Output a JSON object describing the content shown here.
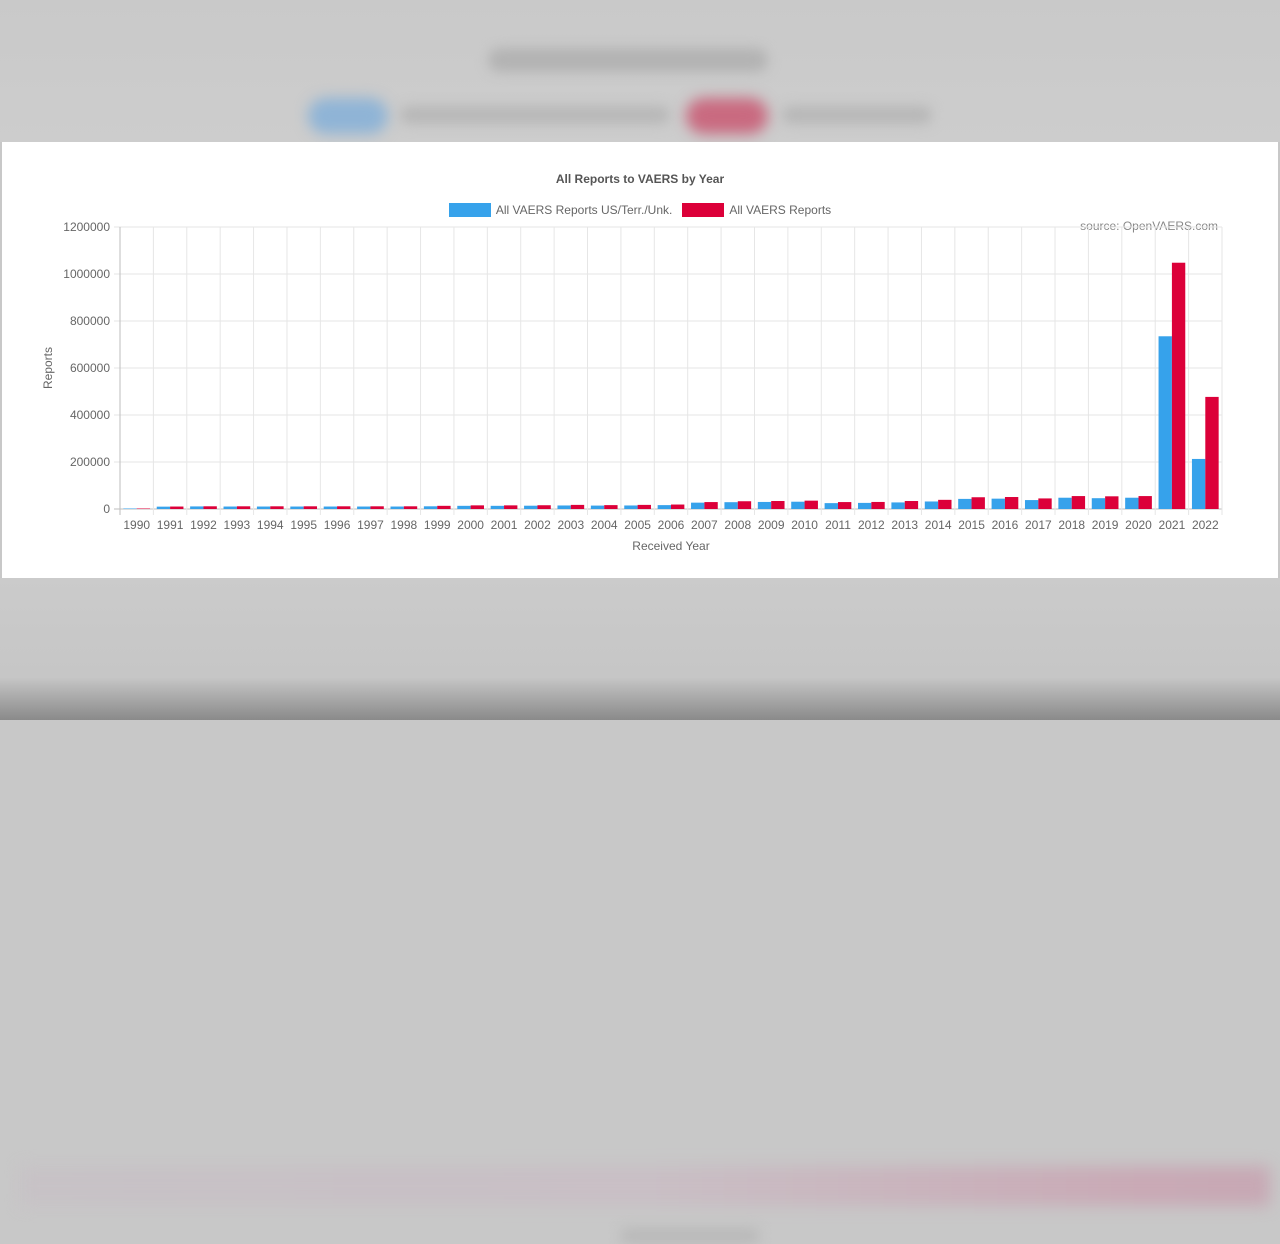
{
  "chart_data": {
    "type": "bar",
    "title": "All Reports to VAERS by Year",
    "xlabel": "Received Year",
    "ylabel": "Reports",
    "ylim": [
      0,
      1200000
    ],
    "yticks": [
      "0",
      "200000",
      "400000",
      "600000",
      "800000",
      "1000000",
      "1200000"
    ],
    "grid": true,
    "legend_position": "top",
    "source_note": "source: OpenVAERS.com",
    "categories": [
      "1990",
      "1991",
      "1992",
      "1993",
      "1994",
      "1995",
      "1996",
      "1997",
      "1998",
      "1999",
      "2000",
      "2001",
      "2002",
      "2003",
      "2004",
      "2005",
      "2006",
      "2007",
      "2008",
      "2009",
      "2010",
      "2011",
      "2012",
      "2013",
      "2014",
      "2015",
      "2016",
      "2017",
      "2018",
      "2019",
      "2020",
      "2021",
      "2022"
    ],
    "series": [
      {
        "name": "All VAERS Reports US/Terr./Unk.",
        "color": "#36a2eb",
        "values": [
          2100,
          10000,
          11000,
          10500,
          10500,
          10500,
          10500,
          10500,
          10500,
          11500,
          13500,
          13500,
          14000,
          15000,
          14500,
          15000,
          16500,
          27000,
          29000,
          30000,
          31000,
          25000,
          26000,
          28000,
          32000,
          43000,
          44000,
          38000,
          48000,
          46000,
          48000,
          735000,
          213000
        ]
      },
      {
        "name": "All VAERS Reports",
        "color": "#dc0039",
        "values": [
          2100,
          10500,
          11500,
          11500,
          11500,
          11500,
          11500,
          11500,
          11500,
          13500,
          15500,
          15500,
          16000,
          17500,
          16500,
          17500,
          19000,
          29500,
          33000,
          34000,
          35500,
          29500,
          30000,
          34000,
          39000,
          50000,
          51000,
          45000,
          55000,
          54000,
          55000,
          1048000,
          477000
        ]
      }
    ]
  }
}
